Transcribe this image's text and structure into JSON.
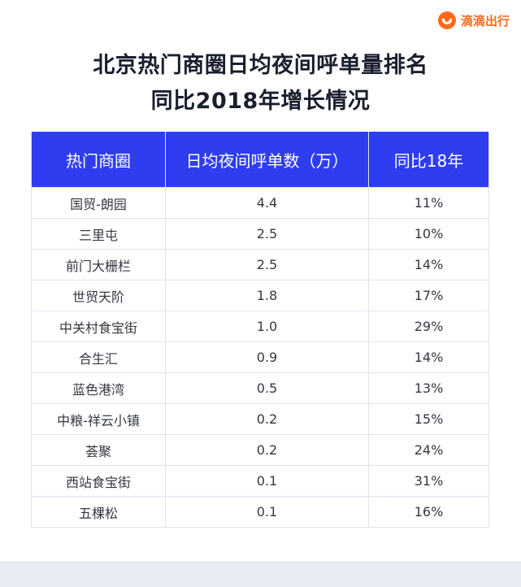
{
  "brand": {
    "name": "滴滴出行",
    "color": "#ff6a1a"
  },
  "title": {
    "line1": "北京热门商圈日均夜间呼单量排名",
    "line2": "同比2018年增长情况"
  },
  "table": {
    "header_color": "#2f3df0",
    "headers": [
      "热门商圈",
      "日均夜间呼单数（万）",
      "同比18年"
    ],
    "rows": [
      [
        "国贸-朗园",
        "4.4",
        "11%"
      ],
      [
        "三里屯",
        "2.5",
        "10%"
      ],
      [
        "前门大栅栏",
        "2.5",
        "14%"
      ],
      [
        "世贸天阶",
        "1.8",
        "17%"
      ],
      [
        "中关村食宝街",
        "1.0",
        "29%"
      ],
      [
        "合生汇",
        "0.9",
        "14%"
      ],
      [
        "蓝色港湾",
        "0.5",
        "13%"
      ],
      [
        "中粮-祥云小镇",
        "0.2",
        "15%"
      ],
      [
        "荟聚",
        "0.2",
        "24%"
      ],
      [
        "西站食宝街",
        "0.1",
        "31%"
      ],
      [
        "五棵松",
        "0.1",
        "16%"
      ]
    ]
  }
}
